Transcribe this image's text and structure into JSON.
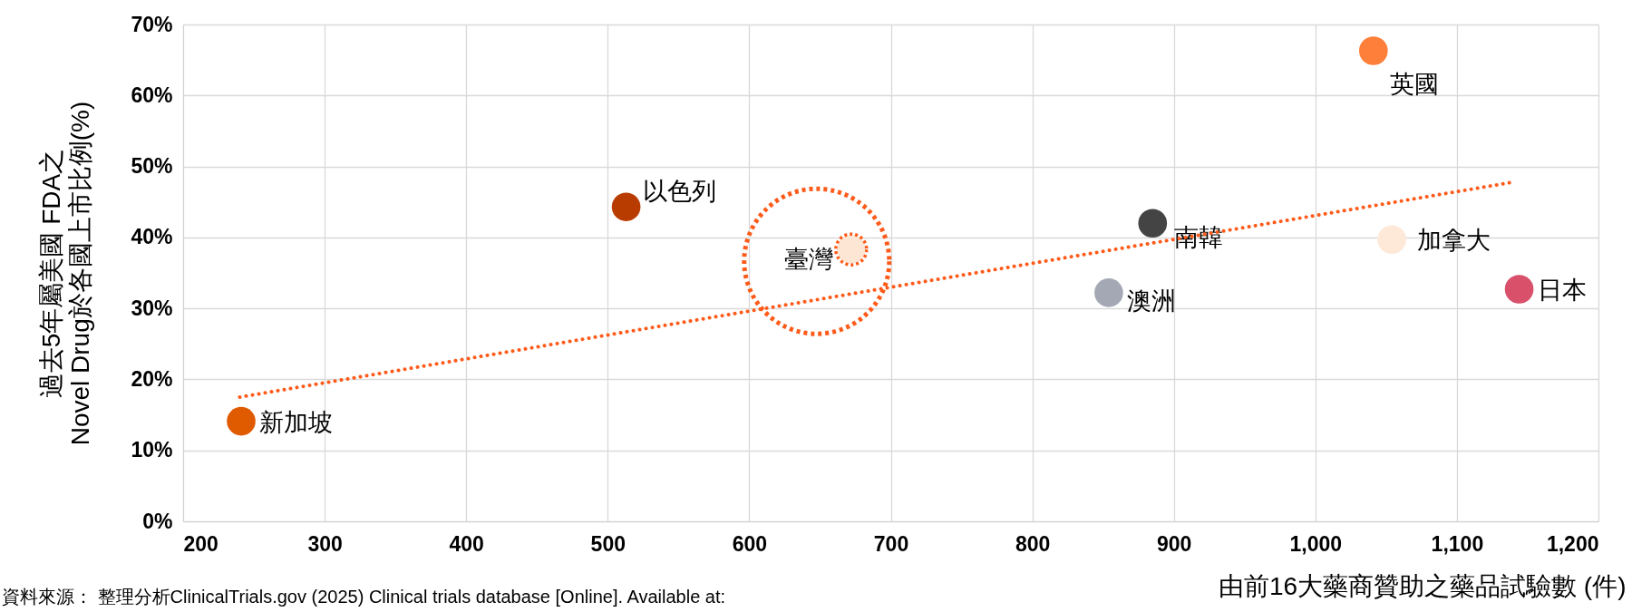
{
  "chart_data": {
    "type": "scatter",
    "ylabel": "過去5年屬美國 FDA之\nNovel Drug於各國上市比例(%)",
    "xlabel": "由前16大藥商贊助之藥品試驗數 (件)",
    "xlim": [
      200,
      1200
    ],
    "xticks": [
      200,
      300,
      400,
      500,
      600,
      700,
      800,
      900,
      {
        "value": 1000,
        "label": "1,000"
      },
      {
        "value": 1100,
        "label": "1,100"
      },
      {
        "value": 1200,
        "label": "1,200"
      }
    ],
    "ylim": [
      0,
      70
    ],
    "yticks": [
      {
        "value": 0,
        "label": "0%"
      },
      {
        "value": 10,
        "label": "10%"
      },
      {
        "value": 20,
        "label": "20%"
      },
      {
        "value": 30,
        "label": "30%"
      },
      {
        "value": 40,
        "label": "40%"
      },
      {
        "value": 50,
        "label": "50%"
      },
      {
        "value": 60,
        "label": "60%"
      },
      {
        "value": 70,
        "label": "70%"
      }
    ],
    "grid": true,
    "marker": "circle",
    "series": [
      {
        "name": "新加坡",
        "color": "#e05a00",
        "x": [
          241
        ],
        "values": [
          14.1
        ]
      },
      {
        "name": "以色列",
        "color": "#b83c00",
        "x": [
          513
        ],
        "values": [
          44.3
        ]
      },
      {
        "name": "臺灣",
        "color": "#fde6d4",
        "x": [
          672
        ],
        "values": [
          38.3
        ]
      },
      {
        "name": "南韓",
        "color": "#444444",
        "x": [
          885
        ],
        "values": [
          42.0
        ]
      },
      {
        "name": "澳洲",
        "color": "#a3a8b4",
        "x": [
          854
        ],
        "values": [
          32.2
        ]
      },
      {
        "name": "英國",
        "color": "#fd7f3a",
        "x": [
          1041
        ],
        "values": [
          66.3
        ]
      },
      {
        "name": "加拿大",
        "color": "#fee8d8",
        "x": [
          1054
        ],
        "values": [
          39.7
        ]
      },
      {
        "name": "日本",
        "color": "#d8506a",
        "x": [
          1144
        ],
        "values": [
          32.7
        ]
      },
      {
        "type": "line",
        "marker": "none",
        "color": "#fe5b1a",
        "line_style": "dotted",
        "x": [
          240,
          1140
        ],
        "values": [
          17.5,
          47.8
        ]
      }
    ],
    "annotations": [
      "資料來源： 整理分析ClinicalTrials.gov (2025) Clinical trials database [Online]. Available at:"
    ]
  }
}
